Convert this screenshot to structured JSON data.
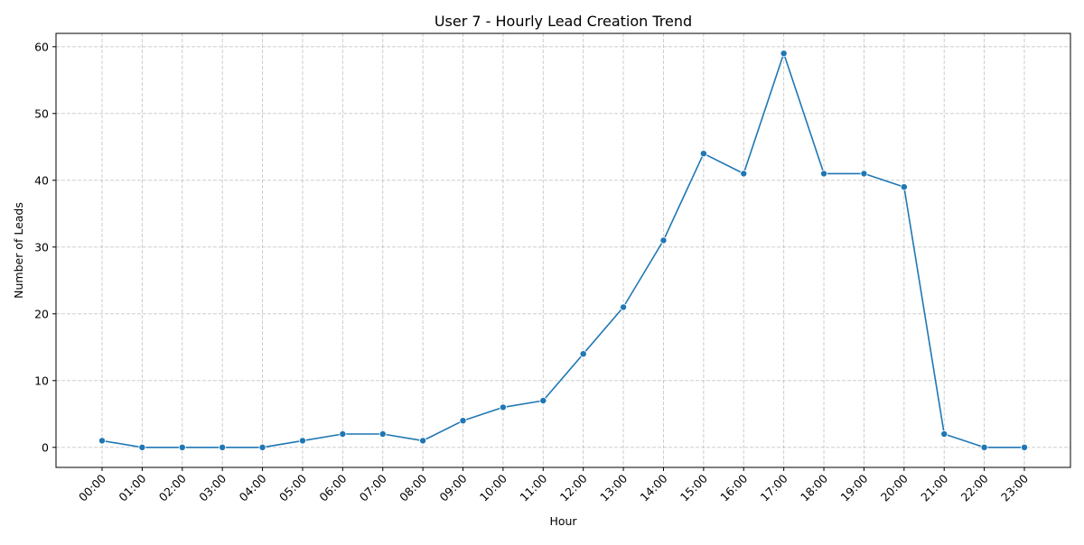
{
  "chart_data": {
    "type": "line",
    "title": "User 7 - Hourly Lead Creation Trend",
    "xlabel": "Hour",
    "ylabel": "Number of Leads",
    "categories": [
      "00:00",
      "01:00",
      "02:00",
      "03:00",
      "04:00",
      "05:00",
      "06:00",
      "07:00",
      "08:00",
      "09:00",
      "10:00",
      "11:00",
      "12:00",
      "13:00",
      "14:00",
      "15:00",
      "16:00",
      "17:00",
      "18:00",
      "19:00",
      "20:00",
      "21:00",
      "22:00",
      "23:00"
    ],
    "series": [
      {
        "values": [
          1,
          0,
          0,
          0,
          0,
          1,
          2,
          2,
          1,
          4,
          6,
          7,
          14,
          21,
          31,
          44,
          41,
          59,
          41,
          41,
          39,
          2,
          0,
          0
        ],
        "color": "#1f77b4",
        "marker": "circle"
      }
    ],
    "ylim": [
      -3,
      62
    ],
    "yticks": [
      0,
      10,
      20,
      30,
      40,
      50,
      60
    ],
    "grid": true,
    "grid_style": "dashed",
    "grid_color": "#b0b0b0",
    "xtick_rotation": 45
  }
}
